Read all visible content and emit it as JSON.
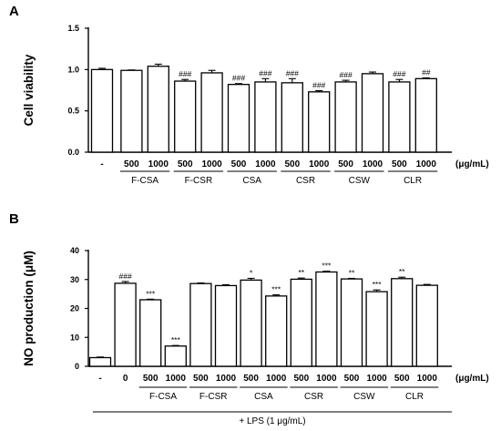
{
  "chart_data": [
    {
      "panel": "A",
      "type": "bar",
      "ylabel": "Cell viability",
      "ylim": [
        0,
        1.5
      ],
      "yticks": [
        "0.0",
        "0.5",
        "1.0",
        "1.5"
      ],
      "categories": [
        "-",
        "500",
        "1000",
        "500",
        "1000",
        "500",
        "1000",
        "500",
        "1000",
        "500",
        "1000",
        "500",
        "1000"
      ],
      "values": [
        1.0,
        0.99,
        1.04,
        0.86,
        0.96,
        0.82,
        0.85,
        0.84,
        0.73,
        0.85,
        0.95,
        0.85,
        0.89
      ],
      "errors": [
        0.015,
        0.005,
        0.025,
        0.02,
        0.03,
        0.01,
        0.04,
        0.05,
        0.015,
        0.02,
        0.02,
        0.03,
        0.01
      ],
      "significance": [
        "",
        "",
        "",
        "###",
        "",
        "###",
        "###",
        "###",
        "###",
        "###",
        "",
        "###",
        "##"
      ],
      "groups": [
        "F-CSA",
        "F-CSR",
        "CSA",
        "CSR",
        "CSW",
        "CLR"
      ],
      "unit": "(μg/mL)"
    },
    {
      "panel": "B",
      "type": "bar",
      "ylabel": "NO production (μM)",
      "ylim": [
        0,
        40
      ],
      "yticks": [
        "0",
        "10",
        "20",
        "30",
        "40"
      ],
      "categories": [
        "-",
        "0",
        "500",
        "1000",
        "500",
        "1000",
        "500",
        "1000",
        "500",
        "1000",
        "500",
        "1000",
        "500",
        "1000"
      ],
      "values": [
        3.0,
        28.7,
        23.0,
        7.0,
        28.6,
        27.9,
        29.8,
        24.3,
        30.1,
        32.6,
        30.2,
        25.8,
        30.3,
        28.0
      ],
      "errors": [
        0.2,
        0.6,
        0.2,
        0.2,
        0.2,
        0.3,
        0.6,
        0.4,
        0.4,
        0.3,
        0.2,
        0.6,
        0.5,
        0.3
      ],
      "significance": [
        "",
        "###",
        "***",
        "***",
        "",
        "",
        "*",
        "***",
        "**",
        "***",
        "**",
        "***",
        "**",
        ""
      ],
      "groups": [
        "F-CSA",
        "F-CSR",
        "CSA",
        "CSR",
        "CSW",
        "CLR"
      ],
      "unit": "(μg/mL)",
      "treatment_label": "+ LPS (1 μg/mL)"
    }
  ]
}
